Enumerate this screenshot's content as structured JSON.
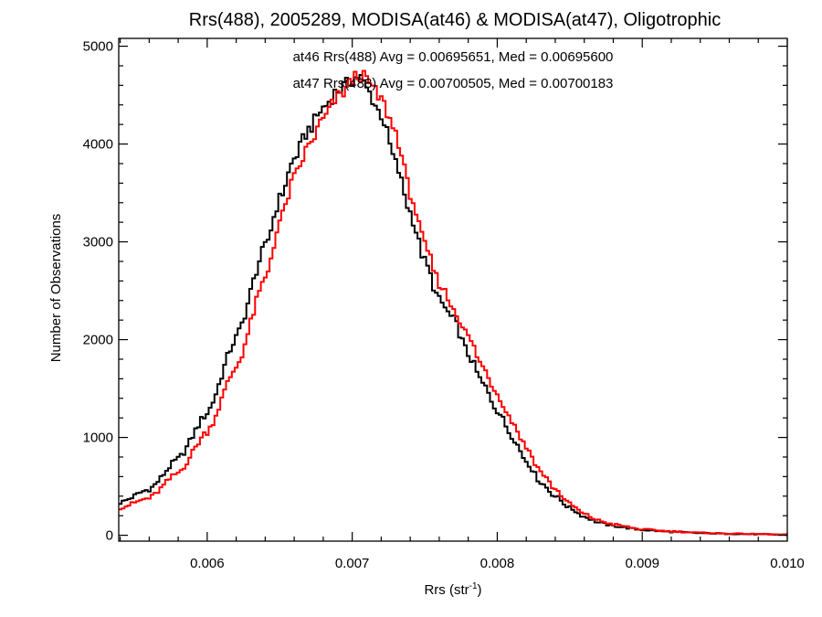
{
  "chart_data": {
    "type": "histogram-step",
    "title": "Rrs(488), 2005289, MODISA(at46) & MODISA(at47), Oligotrophic",
    "xlabel_main": "Rrs (str",
    "xlabel_sup": "-1",
    "xlabel_close": ")",
    "ylabel": "Number of Observations",
    "xlim": [
      0.00539,
      0.01
    ],
    "ylim": [
      -60,
      5080
    ],
    "xticks": [
      {
        "value": 0.006,
        "label": "0.006"
      },
      {
        "value": 0.007,
        "label": "0.007"
      },
      {
        "value": 0.008,
        "label": "0.008"
      },
      {
        "value": 0.009,
        "label": "0.009"
      },
      {
        "value": 0.01,
        "label": "0.010"
      }
    ],
    "yticks": [
      {
        "value": 0,
        "label": "0"
      },
      {
        "value": 1000,
        "label": "1000"
      },
      {
        "value": 2000,
        "label": "2000"
      },
      {
        "value": 3000,
        "label": "3000"
      },
      {
        "value": 4000,
        "label": "4000"
      },
      {
        "value": 5000,
        "label": "5000"
      }
    ],
    "annotations": [
      {
        "text": "at46 Rrs(488) Avg = 0.00695651, Med = 0.00695600",
        "color": "#000000"
      },
      {
        "text": "at47 Rrs(488) Avg = 0.00700505, Med = 0.00700183",
        "color": "#ff0000"
      }
    ],
    "series": [
      {
        "id": "at46",
        "color": "#000000",
        "x": [
          0.00539,
          0.0056,
          0.0058,
          0.006,
          0.0062,
          0.0064,
          0.0065,
          0.0066,
          0.0067,
          0.0068,
          0.0069,
          0.00705,
          0.0071,
          0.0072,
          0.0073,
          0.0074,
          0.0075,
          0.0076,
          0.0077,
          0.0078,
          0.0079,
          0.008,
          0.0081,
          0.0082,
          0.0083,
          0.0084,
          0.0085,
          0.0086,
          0.0087,
          0.0088,
          0.009,
          0.0092,
          0.0094,
          0.0096,
          0.0098,
          0.01
        ],
        "y": [
          330,
          470,
          780,
          1250,
          2020,
          2950,
          3440,
          3850,
          4150,
          4370,
          4550,
          4700,
          4560,
          4300,
          3800,
          3300,
          2800,
          2400,
          2200,
          1850,
          1550,
          1280,
          1020,
          760,
          540,
          400,
          280,
          190,
          130,
          95,
          55,
          35,
          22,
          15,
          10,
          5
        ]
      },
      {
        "id": "at47",
        "color": "#ff0000",
        "x": [
          0.00539,
          0.0056,
          0.0058,
          0.006,
          0.0062,
          0.0064,
          0.0065,
          0.0066,
          0.0067,
          0.0068,
          0.0069,
          0.00705,
          0.0071,
          0.0072,
          0.0073,
          0.0074,
          0.0075,
          0.0076,
          0.0077,
          0.0078,
          0.0079,
          0.008,
          0.0081,
          0.0082,
          0.0083,
          0.0084,
          0.0085,
          0.0086,
          0.0087,
          0.0088,
          0.009,
          0.0092,
          0.0094,
          0.0096,
          0.0098,
          0.01
        ],
        "y": [
          280,
          380,
          640,
          1060,
          1720,
          2620,
          3200,
          3650,
          3980,
          4250,
          4480,
          4720,
          4650,
          4450,
          4120,
          3500,
          2960,
          2580,
          2320,
          2030,
          1720,
          1450,
          1170,
          900,
          650,
          470,
          320,
          215,
          150,
          110,
          60,
          40,
          25,
          18,
          12,
          6
        ]
      }
    ]
  }
}
